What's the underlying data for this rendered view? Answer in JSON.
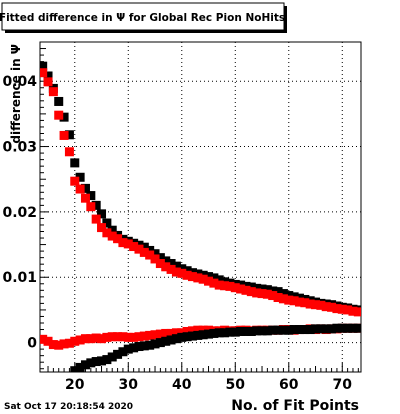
{
  "chart_data": {
    "type": "scatter",
    "title": "Fitted difference in  Ψ  for Global Rec Pion NoHits",
    "xlabel": "No. of Fit Points",
    "ylabel": "difference in  Ψ",
    "timestamp": "Sat Oct 17 20:18:54 2020",
    "xlim": [
      13.5,
      73.5
    ],
    "ylim": [
      -0.0045,
      0.046
    ],
    "x_ticks": [
      20,
      30,
      40,
      50,
      60,
      70
    ],
    "x_tick_labels": [
      "20",
      "30",
      "40",
      "50",
      "60",
      "70"
    ],
    "y_ticks": [
      0,
      0.01,
      0.02,
      0.03,
      0.04
    ],
    "y_tick_labels": [
      "0",
      "0.01",
      "0.02",
      "0.03",
      "0.04"
    ],
    "grid": true,
    "series": [
      {
        "color": "#000000",
        "marker": "square",
        "x": [
          14,
          15,
          16,
          17,
          18,
          19,
          20,
          21,
          22,
          23,
          24,
          25,
          26,
          27,
          28,
          29,
          30,
          31,
          32,
          33,
          34,
          35,
          36,
          37,
          38,
          39,
          40,
          41,
          42,
          43,
          44,
          45,
          46,
          47,
          48,
          49,
          50,
          51,
          52,
          53,
          54,
          55,
          56,
          57,
          58,
          59,
          60,
          61,
          62,
          63,
          64,
          65,
          66,
          67,
          68,
          69,
          70,
          71,
          72,
          73
        ],
        "y": [
          0.0423,
          0.0408,
          0.0389,
          0.0369,
          0.0345,
          0.0318,
          0.0275,
          0.0253,
          0.0236,
          0.0225,
          0.021,
          0.0197,
          0.0183,
          0.0172,
          0.0164,
          0.0158,
          0.0155,
          0.0152,
          0.0149,
          0.0146,
          0.0141,
          0.0136,
          0.013,
          0.0125,
          0.0121,
          0.0117,
          0.0113,
          0.011,
          0.0107,
          0.0105,
          0.0103,
          0.0101,
          0.0099,
          0.0096,
          0.0093,
          0.0091,
          0.0089,
          0.0088,
          0.0086,
          0.0085,
          0.0083,
          0.0082,
          0.0081,
          0.0079,
          0.0078,
          0.0075,
          0.0072,
          0.007,
          0.0068,
          0.0066,
          0.0064,
          0.0062,
          0.006,
          0.0059,
          0.0058,
          0.0056,
          0.0054,
          0.0053,
          0.0051,
          0.005
        ]
      },
      {
        "color": "#ff0000",
        "marker": "square",
        "x": [
          14,
          15,
          16,
          17,
          18,
          19,
          20,
          21,
          22,
          23,
          24,
          25,
          26,
          27,
          28,
          29,
          30,
          31,
          32,
          33,
          34,
          35,
          36,
          37,
          38,
          39,
          40,
          41,
          42,
          43,
          44,
          45,
          46,
          47,
          48,
          49,
          50,
          51,
          52,
          53,
          54,
          55,
          56,
          57,
          58,
          59,
          60,
          61,
          62,
          63,
          64,
          65,
          66,
          67,
          68,
          69,
          70,
          71,
          72,
          73
        ],
        "y": [
          0.0413,
          0.0399,
          0.0384,
          0.0348,
          0.0317,
          0.0292,
          0.0247,
          0.0235,
          0.0221,
          0.0208,
          0.0189,
          0.0176,
          0.0168,
          0.0163,
          0.0159,
          0.0153,
          0.0151,
          0.0147,
          0.0143,
          0.0138,
          0.0134,
          0.0128,
          0.0121,
          0.0116,
          0.0112,
          0.0108,
          0.0106,
          0.0103,
          0.0101,
          0.0099,
          0.0097,
          0.0094,
          0.0091,
          0.0088,
          0.0087,
          0.0086,
          0.0084,
          0.0082,
          0.008,
          0.0078,
          0.0076,
          0.0075,
          0.0074,
          0.0072,
          0.0069,
          0.0067,
          0.0065,
          0.0064,
          0.0062,
          0.0061,
          0.0059,
          0.0058,
          0.0057,
          0.0055,
          0.0054,
          0.0052,
          0.0051,
          0.005,
          0.0048,
          0.0047
        ]
      },
      {
        "color": "#ff0000",
        "marker": "square",
        "x": [
          14,
          15,
          16,
          17,
          18,
          19,
          20,
          21,
          22,
          23,
          24,
          25,
          26,
          27,
          28,
          29,
          30,
          31,
          32,
          33,
          34,
          35,
          36,
          37,
          38,
          39,
          40,
          41,
          42,
          43,
          44,
          45,
          46,
          47,
          48,
          49,
          50,
          51,
          52,
          53,
          54,
          55,
          56,
          57,
          58,
          59,
          60,
          61,
          62,
          63,
          64,
          65,
          66,
          67,
          68,
          69,
          70,
          71,
          72,
          73
        ],
        "y": [
          0.0005,
          0.0002,
          -0.0003,
          -0.0004,
          -0.0002,
          -0.0001,
          0.0002,
          0.0004,
          0.0006,
          0.0006,
          0.0007,
          0.0006,
          0.0008,
          0.0009,
          0.0009,
          0.0009,
          0.0008,
          0.0008,
          0.0009,
          0.001,
          0.0011,
          0.0012,
          0.0013,
          0.0014,
          0.0014,
          0.0015,
          0.0015,
          0.0017,
          0.0018,
          0.0019,
          0.0019,
          0.0019,
          0.0018,
          0.0018,
          0.0019,
          0.0018,
          0.0018,
          0.0019,
          0.0019,
          0.0018,
          0.0019,
          0.0019,
          0.0019,
          0.0019,
          0.0019,
          0.002,
          0.002,
          0.0019,
          0.002,
          0.002,
          0.0021,
          0.002,
          0.0021,
          0.002,
          0.0021,
          0.0021,
          0.0022,
          0.0022,
          0.0022,
          0.0022
        ]
      },
      {
        "color": "#000000",
        "marker": "square",
        "x": [
          20,
          21,
          22,
          23,
          24,
          25,
          26,
          27,
          28,
          29,
          30,
          31,
          32,
          33,
          34,
          35,
          36,
          37,
          38,
          39,
          40,
          41,
          42,
          43,
          44,
          45,
          46,
          47,
          48,
          49,
          50,
          51,
          52,
          53,
          54,
          55,
          56,
          57,
          58,
          59,
          60,
          61,
          62,
          63,
          64,
          65,
          66,
          67,
          68,
          69,
          70,
          71,
          72,
          73
        ],
        "y": [
          -0.0043,
          -0.0038,
          -0.0034,
          -0.0031,
          -0.0029,
          -0.0028,
          -0.0026,
          -0.0022,
          -0.0018,
          -0.0014,
          -0.001,
          -0.0008,
          -0.0006,
          -0.0005,
          -0.0004,
          -0.0002,
          0.0,
          0.0002,
          0.0004,
          0.0006,
          0.0008,
          0.0009,
          0.001,
          0.0011,
          0.0012,
          0.0013,
          0.0014,
          0.0015,
          0.0015,
          0.0016,
          0.0016,
          0.0017,
          0.0017,
          0.0017,
          0.0018,
          0.0018,
          0.0018,
          0.0019,
          0.0019,
          0.0019,
          0.0019,
          0.002,
          0.002,
          0.002,
          0.002,
          0.0021,
          0.0021,
          0.0021,
          0.0021,
          0.0022,
          0.0022,
          0.0022,
          0.0022,
          0.0022
        ]
      }
    ]
  }
}
